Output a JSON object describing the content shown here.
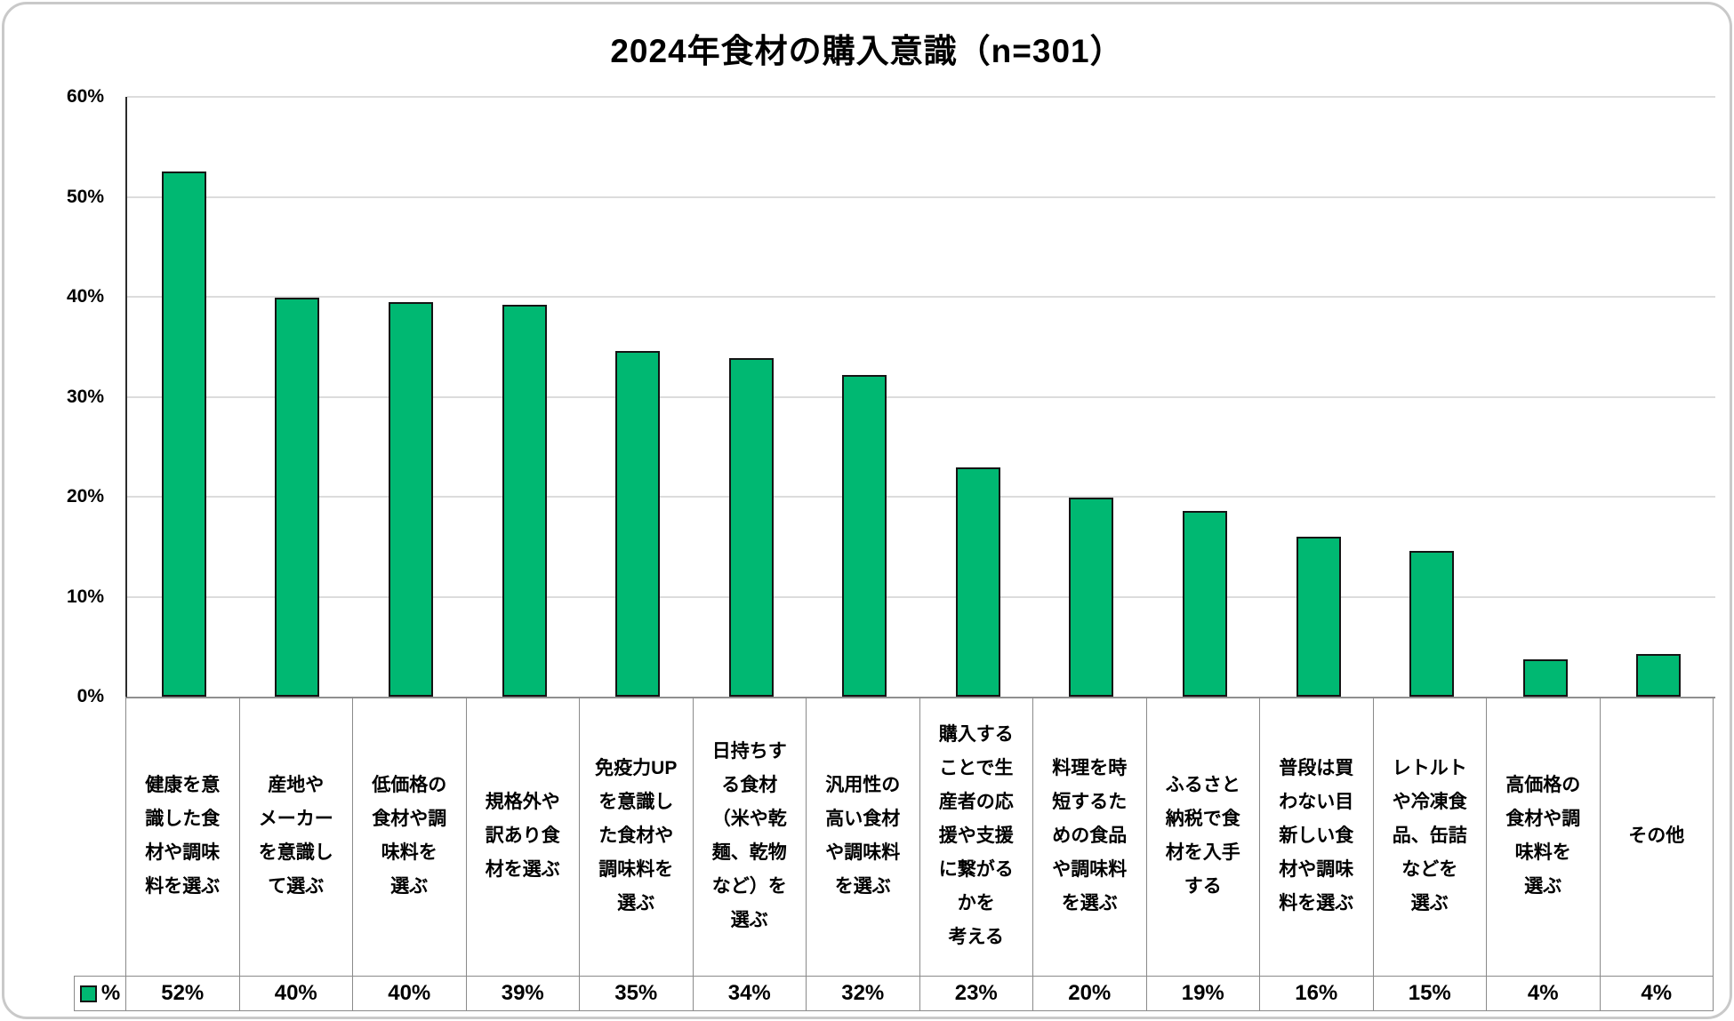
{
  "chart_data": {
    "type": "bar",
    "title": "2024年食材の購入意識（n=301）",
    "sample_size_note": "n=301",
    "bar_color": "#00b872",
    "bar_border_color": "#141414",
    "grid": true,
    "legend": {
      "label": "%",
      "position": "bottom-left"
    },
    "y_axis": {
      "min": 0,
      "max": 60,
      "step": 10,
      "ticks": [
        "60%",
        "50%",
        "40%",
        "30%",
        "20%",
        "10%",
        "0%"
      ]
    },
    "categories": [
      "健康を意識した食材や調味料を選ぶ",
      "産地やメーカーを意識して選ぶ",
      "低価格の食材や調味料を選ぶ",
      "規格外や訳あり食材を選ぶ",
      "免疫力UPを意識した食材や調味料を選ぶ",
      "日持ちする食材（米や乾麺、乾物など）を選ぶ",
      "汎用性の高い食材や調味料を選ぶ",
      "購入することで生産者の応援や支援に繋がるかを考える",
      "料理を時短するための食品や調味料を選ぶ",
      "ふるさと納税で食材を入手する",
      "普段は買わない目新しい食材や調味料を選ぶ",
      "レトルトや冷凍食品、缶詰などを選ぶ",
      "高価格の食材や調味料を選ぶ",
      "その他"
    ],
    "categories_display": [
      "健康を意\n識した食\n材や調味\n料を選ぶ",
      "産地や\nメーカー\nを意識し\nて選ぶ",
      "低価格の\n食材や調\n味料を\n選ぶ",
      "規格外や\n訳あり食\n材を選ぶ",
      "免疫力UP\nを意識し\nた食材や\n調味料を\n選ぶ",
      "日持ちす\nる食材\n（米や乾\n麺、乾物\nなど）を\n選ぶ",
      "汎用性の\n高い食材\nや調味料\nを選ぶ",
      "購入する\nことで生\n産者の応\n援や支援\nに繋がる\nかを\n考える",
      "料理を時\n短するた\nめの食品\nや調味料\nを選ぶ",
      "ふるさと\n納税で食\n材を入手\nする",
      "普段は買\nわない目\n新しい食\n材や調味\n料を選ぶ",
      "レトルト\nや冷凍食\n品、缶詰\nなどを\n選ぶ",
      "高価格の\n食材や調\n味料を\n選ぶ",
      "その他"
    ],
    "values": [
      52.5,
      39.9,
      39.5,
      39.2,
      34.6,
      33.9,
      32.2,
      22.9,
      19.9,
      18.6,
      16.0,
      14.6,
      3.7,
      4.3
    ],
    "value_labels": [
      "52%",
      "40%",
      "40%",
      "39%",
      "35%",
      "34%",
      "32%",
      "23%",
      "20%",
      "19%",
      "16%",
      "15%",
      "4%",
      "4%"
    ]
  }
}
